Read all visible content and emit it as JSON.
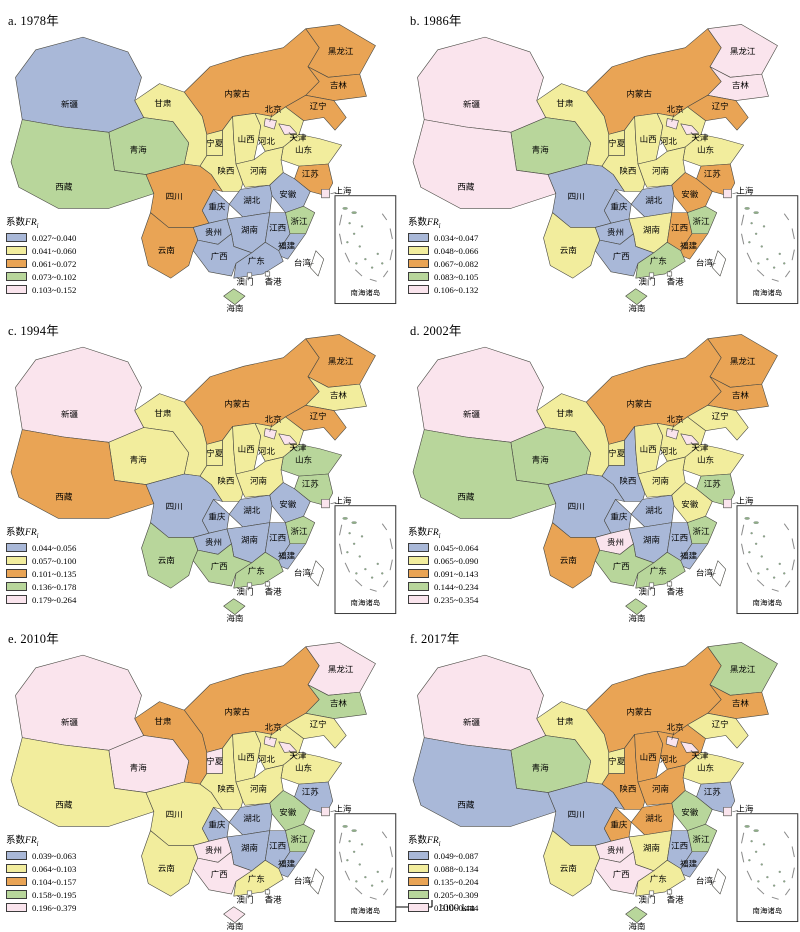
{
  "figure": {
    "legend_title_prefix": "系数",
    "legend_title_var": "FR",
    "legend_title_sub": "i",
    "inset_label": "南海诸岛",
    "scalebar": {
      "start": "0",
      "end": "1000 km"
    },
    "class_colors": [
      "#a9b8d8",
      "#f2ed9d",
      "#e9a455",
      "#b8d69b",
      "#fae4ed"
    ],
    "uncolored": "#ffffff",
    "provinces": {
      "xj": "新疆",
      "xz": "西藏",
      "qh": "青海",
      "gs": "甘肃",
      "nmg": "内蒙古",
      "nx": "宁夏",
      "sn": "陕西",
      "sx": "山西",
      "heb": "河北",
      "bj": "北京",
      "tj": "天津",
      "sd": "山东",
      "hen": "河南",
      "js": "江苏",
      "sh": "上海",
      "ah": "安徽",
      "hub": "湖北",
      "cq": "重庆",
      "sc": "四川",
      "gz": "贵州",
      "yn": "云南",
      "hun": "湖南",
      "jx": "江西",
      "zj": "浙江",
      "fj": "福建",
      "gx": "广西",
      "gd": "广东",
      "hn": "海南",
      "tw": "台湾",
      "hlj": "黑龙江",
      "jl": "吉林",
      "ln": "辽宁",
      "hk": "香港",
      "mo": "澳门"
    },
    "panels": [
      {
        "id": "a",
        "title": "a. 1978年",
        "legend_ranges": [
          "0.027~0.040",
          "0.041~0.060",
          "0.061~0.072",
          "0.073~0.102",
          "0.103~0.152"
        ],
        "fills": {
          "xj": 1,
          "xz": 4,
          "qh": 4,
          "gs": 2,
          "nmg": 3,
          "nx": 2,
          "sn": 2,
          "sx": 2,
          "heb": 2,
          "bj": 5,
          "tj": 5,
          "sd": 2,
          "hen": 2,
          "js": 3,
          "sh": 5,
          "ah": 1,
          "hub": 1,
          "cq": 1,
          "sc": 3,
          "gz": 1,
          "yn": 3,
          "hun": 1,
          "jx": 1,
          "zj": 4,
          "fj": 1,
          "gx": 1,
          "gd": 1,
          "hn": 4,
          "tw": 0,
          "hlj": 3,
          "jl": 3,
          "ln": 3,
          "hk": 0,
          "mo": 0
        }
      },
      {
        "id": "b",
        "title": "b. 1986年",
        "legend_ranges": [
          "0.034~0.047",
          "0.048~0.066",
          "0.067~0.082",
          "0.083~0.105",
          "0.106~0.132"
        ],
        "fills": {
          "xj": 5,
          "xz": 5,
          "qh": 4,
          "gs": 2,
          "nmg": 3,
          "nx": 2,
          "sn": 2,
          "sx": 2,
          "heb": 2,
          "bj": 5,
          "tj": 5,
          "sd": 2,
          "hen": 2,
          "js": 3,
          "sh": 5,
          "ah": 3,
          "hub": 1,
          "cq": 1,
          "sc": 1,
          "gz": 1,
          "yn": 2,
          "hun": 2,
          "jx": 3,
          "zj": 4,
          "fj": 3,
          "gx": 1,
          "gd": 4,
          "hn": 4,
          "tw": 0,
          "hlj": 5,
          "jl": 5,
          "ln": 3,
          "hk": 0,
          "mo": 0
        }
      },
      {
        "id": "c",
        "title": "c. 1994年",
        "legend_ranges": [
          "0.044~0.056",
          "0.057~0.100",
          "0.101~0.135",
          "0.136~0.178",
          "0.179~0.264"
        ],
        "fills": {
          "xj": 5,
          "xz": 3,
          "qh": 2,
          "gs": 2,
          "nmg": 3,
          "nx": 2,
          "sn": 2,
          "sx": 2,
          "heb": 2,
          "bj": 5,
          "tj": 5,
          "sd": 4,
          "hen": 2,
          "js": 4,
          "sh": 5,
          "ah": 1,
          "hub": 1,
          "cq": 1,
          "sc": 1,
          "gz": 1,
          "yn": 4,
          "hun": 1,
          "jx": 1,
          "zj": 4,
          "fj": 1,
          "gx": 4,
          "gd": 4,
          "hn": 4,
          "tw": 0,
          "hlj": 3,
          "jl": 2,
          "ln": 3,
          "hk": 0,
          "mo": 0
        }
      },
      {
        "id": "d",
        "title": "d. 2002年",
        "legend_ranges": [
          "0.045~0.064",
          "0.065~0.090",
          "0.091~0.143",
          "0.144~0.234",
          "0.235~0.354"
        ],
        "fills": {
          "xj": 5,
          "xz": 4,
          "qh": 4,
          "gs": 2,
          "nmg": 3,
          "nx": 2,
          "sn": 1,
          "sx": 2,
          "heb": 2,
          "bj": 5,
          "tj": 5,
          "sd": 2,
          "hen": 2,
          "js": 4,
          "sh": 5,
          "ah": 2,
          "hub": 1,
          "cq": 1,
          "sc": 1,
          "gz": 5,
          "yn": 3,
          "hun": 1,
          "jx": 1,
          "zj": 4,
          "fj": 1,
          "gx": 4,
          "gd": 4,
          "hn": 4,
          "tw": 0,
          "hlj": 3,
          "jl": 3,
          "ln": 2,
          "hk": 0,
          "mo": 0
        }
      },
      {
        "id": "e",
        "title": "e. 2010年",
        "legend_ranges": [
          "0.039~0.063",
          "0.064~0.103",
          "0.104~0.157",
          "0.158~0.195",
          "0.196~0.379"
        ],
        "fills": {
          "xj": 5,
          "xz": 2,
          "qh": 5,
          "gs": 3,
          "nmg": 3,
          "nx": 5,
          "sn": 2,
          "sx": 2,
          "heb": 2,
          "bj": 5,
          "tj": 5,
          "sd": 2,
          "hen": 2,
          "js": 1,
          "sh": 5,
          "ah": 4,
          "hub": 1,
          "cq": 1,
          "sc": 2,
          "gz": 5,
          "yn": 2,
          "hun": 1,
          "jx": 1,
          "zj": 4,
          "fj": 1,
          "gx": 5,
          "gd": 2,
          "hn": 5,
          "tw": 0,
          "hlj": 5,
          "jl": 4,
          "ln": 2,
          "hk": 0,
          "mo": 0
        }
      },
      {
        "id": "f",
        "title": "f. 2017年",
        "legend_ranges": [
          "0.049~0.087",
          "0.088~0.134",
          "0.135~0.204",
          "0.205~0.309",
          "0.310~0.444"
        ],
        "fills": {
          "xj": 5,
          "xz": 1,
          "qh": 4,
          "gs": 2,
          "nmg": 3,
          "nx": 2,
          "sn": 3,
          "sx": 3,
          "heb": 3,
          "bj": 5,
          "tj": 5,
          "sd": 2,
          "hen": 3,
          "js": 1,
          "sh": 5,
          "ah": 4,
          "hub": 3,
          "cq": 3,
          "sc": 1,
          "gz": 5,
          "yn": 2,
          "hun": 2,
          "jx": 1,
          "zj": 4,
          "fj": 1,
          "gx": 5,
          "gd": 2,
          "hn": 4,
          "tw": 0,
          "hlj": 4,
          "jl": 3,
          "ln": 2,
          "hk": 0,
          "mo": 0
        }
      }
    ]
  }
}
